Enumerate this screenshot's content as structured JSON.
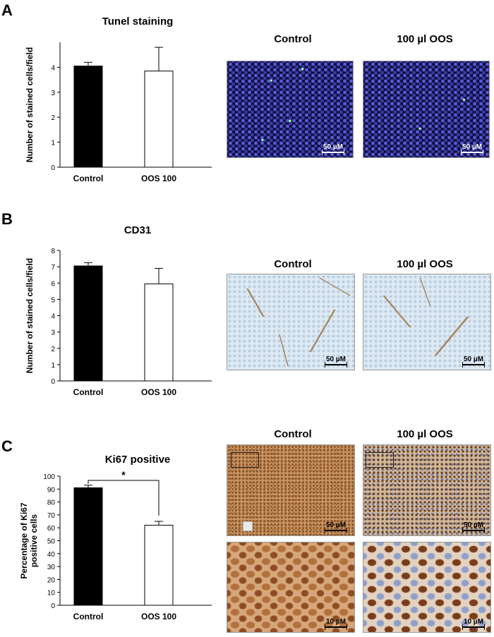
{
  "panels": [
    {
      "letter": "A",
      "image_labels": [
        "Control",
        "100 µl OOS"
      ],
      "scale_bars": [
        "50 µM",
        "50 µM"
      ]
    },
    {
      "letter": "B",
      "image_labels": [
        "Control",
        "100 µl OOS"
      ],
      "scale_bars": [
        "50 µM",
        "50 µM"
      ]
    },
    {
      "letter": "C",
      "image_labels": [
        "Control",
        "100 µl OOS"
      ],
      "scale_bars": [
        "50 µM",
        "50 µM",
        "10 µM",
        "10 µM"
      ]
    }
  ],
  "chart_data": [
    {
      "type": "bar",
      "title": "Tunel staining",
      "ylabel": "Number of stained cells/field",
      "categories": [
        "Control",
        "OOS 100"
      ],
      "values": [
        4.05,
        3.85
      ],
      "errors": [
        0.15,
        0.95
      ],
      "bar_colors": [
        "#000000",
        "#ffffff"
      ],
      "ylim": [
        0,
        5
      ],
      "yticks": [
        0,
        1,
        2,
        3,
        4
      ]
    },
    {
      "type": "bar",
      "title": "CD31",
      "ylabel": "Number of stained cells/field",
      "categories": [
        "Control",
        "OOS 100"
      ],
      "values": [
        7.05,
        5.95
      ],
      "errors": [
        0.2,
        0.95
      ],
      "bar_colors": [
        "#000000",
        "#ffffff"
      ],
      "ylim": [
        0,
        8
      ],
      "yticks": [
        0,
        1,
        2,
        3,
        4,
        5,
        6,
        7,
        8
      ]
    },
    {
      "type": "bar",
      "title": "Ki67 positive",
      "ylabel": "Percentage of Ki67 positive cells",
      "categories": [
        "Control",
        "OOS 100"
      ],
      "values": [
        91,
        62
      ],
      "errors": [
        2,
        3
      ],
      "bar_colors": [
        "#000000",
        "#ffffff"
      ],
      "ylim": [
        0,
        100
      ],
      "yticks": [
        0,
        10,
        20,
        30,
        40,
        50,
        60,
        70,
        80,
        90,
        100
      ],
      "significance": "*"
    }
  ]
}
